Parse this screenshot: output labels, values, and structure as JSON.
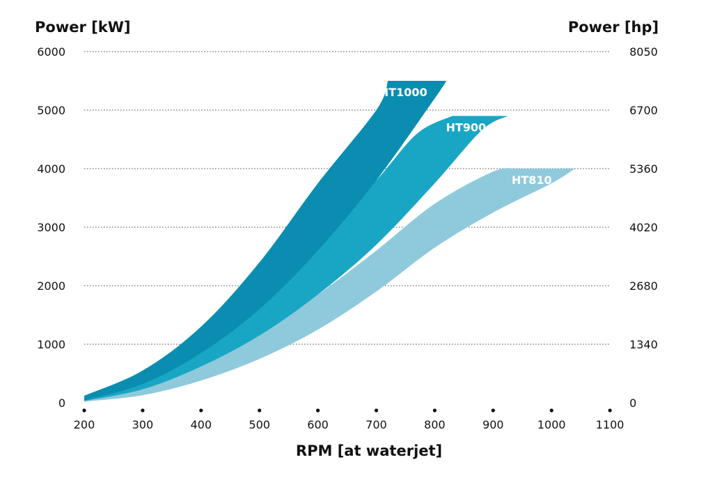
{
  "chart_data": {
    "type": "area",
    "ylabel_left": "Power [kW]",
    "ylabel_right": "Power [hp]",
    "xlabel": "RPM [at waterjet]",
    "xlim": [
      200,
      1100
    ],
    "ylim": [
      0,
      6000
    ],
    "x_ticks": [
      "200",
      "300",
      "400",
      "500",
      "600",
      "700",
      "800",
      "900",
      "1000",
      "1100"
    ],
    "y_ticks_left": [
      "0",
      "1000",
      "2000",
      "3000",
      "4000",
      "5000",
      "6000"
    ],
    "y_ticks_right": [
      "0",
      "1340",
      "2680",
      "4020",
      "5360",
      "6700",
      "8050"
    ],
    "grid": "horizontal dotted",
    "series": [
      {
        "name": "HT1000",
        "color": "#0a8db1",
        "upper": [
          [
            200,
            120
          ],
          [
            300,
            550
          ],
          [
            400,
            1300
          ],
          [
            500,
            2400
          ],
          [
            600,
            3750
          ],
          [
            700,
            5000
          ],
          [
            720,
            5500
          ]
        ],
        "lower": [
          [
            200,
            40
          ],
          [
            300,
            320
          ],
          [
            400,
            850
          ],
          [
            500,
            1600
          ],
          [
            600,
            2600
          ],
          [
            700,
            3800
          ],
          [
            800,
            5200
          ],
          [
            820,
            5500
          ]
        ]
      },
      {
        "name": "HT900",
        "color": "#19a6c5",
        "upper": [
          [
            200,
            80
          ],
          [
            300,
            380
          ],
          [
            400,
            950
          ],
          [
            500,
            1750
          ],
          [
            600,
            2750
          ],
          [
            700,
            3800
          ],
          [
            770,
            4600
          ],
          [
            830,
            4900
          ]
        ],
        "lower": [
          [
            200,
            30
          ],
          [
            300,
            230
          ],
          [
            400,
            620
          ],
          [
            500,
            1150
          ],
          [
            600,
            1850
          ],
          [
            700,
            2700
          ],
          [
            800,
            3750
          ],
          [
            880,
            4650
          ],
          [
            925,
            4900
          ]
        ]
      },
      {
        "name": "HT810",
        "color": "#8ecadc",
        "upper": [
          [
            200,
            60
          ],
          [
            300,
            270
          ],
          [
            400,
            650
          ],
          [
            500,
            1200
          ],
          [
            600,
            1850
          ],
          [
            700,
            2600
          ],
          [
            800,
            3400
          ],
          [
            900,
            3950
          ],
          [
            940,
            4000
          ]
        ],
        "lower": [
          [
            200,
            20
          ],
          [
            300,
            130
          ],
          [
            400,
            380
          ],
          [
            500,
            750
          ],
          [
            600,
            1250
          ],
          [
            700,
            1900
          ],
          [
            800,
            2650
          ],
          [
            900,
            3250
          ],
          [
            1000,
            3750
          ],
          [
            1040,
            4000
          ]
        ]
      }
    ]
  }
}
